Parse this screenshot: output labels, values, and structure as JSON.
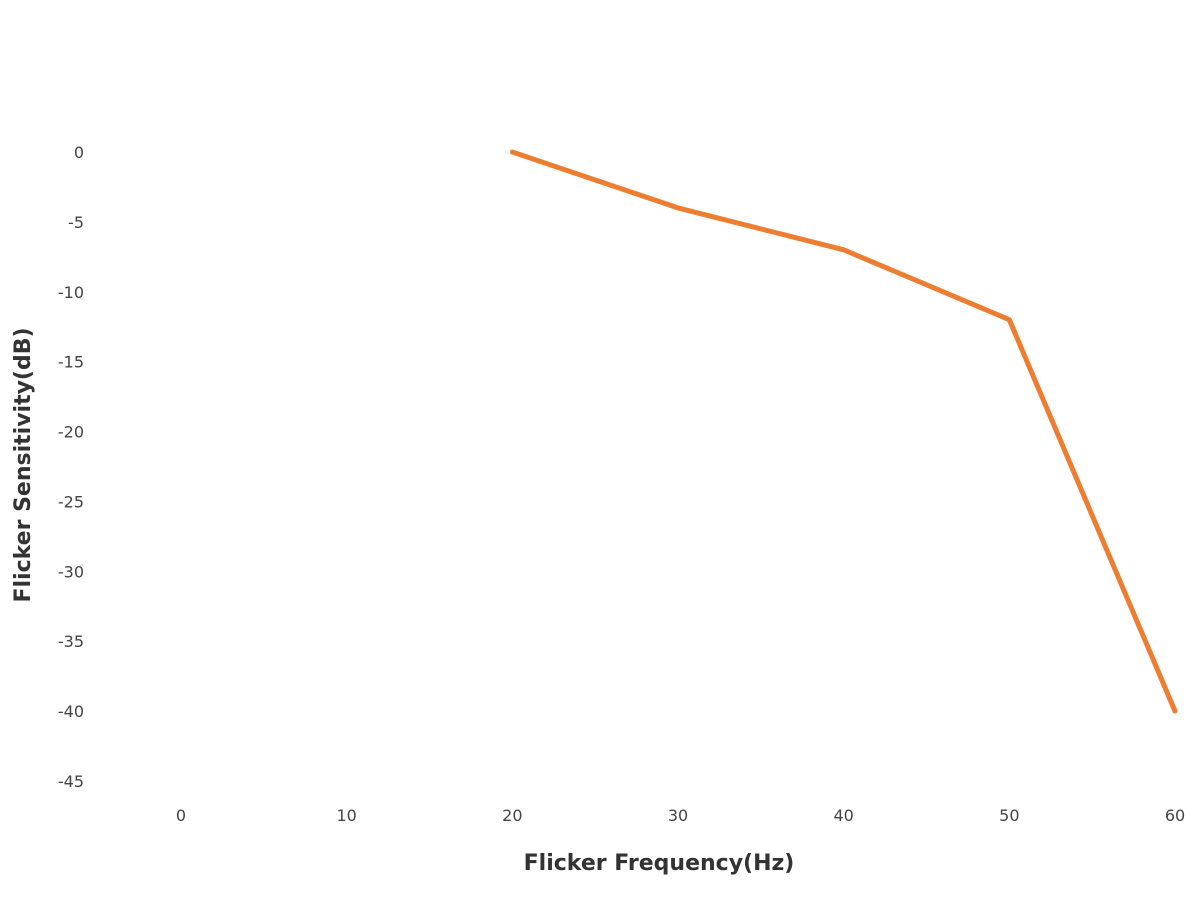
{
  "chart_data": {
    "type": "line",
    "title": "",
    "xlabel": "Flicker Frequency(Hz)",
    "ylabel": "Flicker Sensitivity(dB)",
    "xlim": [
      0,
      60
    ],
    "ylim": [
      -45,
      0
    ],
    "x_ticks": [
      "0",
      "10",
      "20",
      "30",
      "40",
      "50",
      "60"
    ],
    "y_ticks": [
      "0",
      "-5",
      "-10",
      "-15",
      "-20",
      "-25",
      "-30",
      "-35",
      "-40",
      "-45"
    ],
    "grid": false,
    "legend": "none",
    "series": [
      {
        "x": [
          20,
          30,
          40,
          50,
          60
        ],
        "y": [
          0,
          -4,
          -7,
          -12,
          -40
        ],
        "color": "#ED7D31"
      }
    ]
  }
}
